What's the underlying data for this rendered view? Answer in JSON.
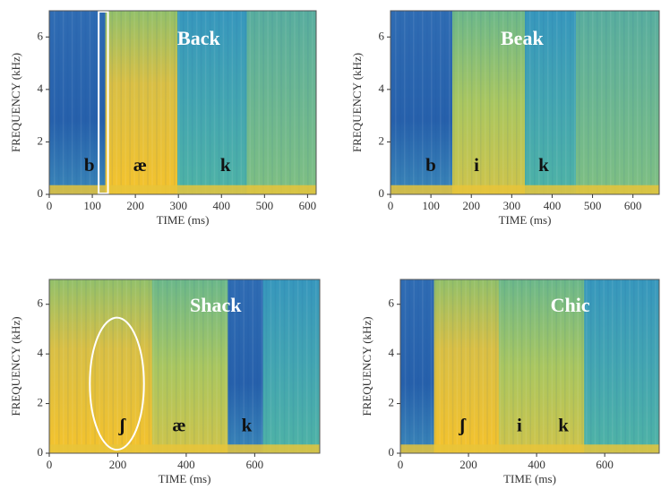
{
  "chart_data": [
    {
      "type": "spectrogram",
      "title": "Back",
      "x_label": "TIME (ms)",
      "y_label": "FREQUENCY (kHz)",
      "xlim": [
        0,
        620
      ],
      "xticks": [
        0,
        100,
        200,
        300,
        400,
        500,
        600
      ],
      "ylim": [
        0,
        7
      ],
      "yticks": [
        0,
        2,
        4,
        6
      ],
      "annotations": [
        "b",
        "æ",
        "k"
      ]
    },
    {
      "type": "spectrogram",
      "title": "Beak",
      "x_label": "TIME (ms)",
      "y_label": "FREQUENCY (kHz)",
      "xlim": [
        0,
        665
      ],
      "xticks": [
        0,
        100,
        200,
        300,
        400,
        500,
        600
      ],
      "ylim": [
        0,
        7
      ],
      "yticks": [
        0,
        2,
        4,
        6
      ],
      "annotations": [
        "b",
        "i",
        "k"
      ]
    },
    {
      "type": "spectrogram",
      "title": "Shack",
      "x_label": "TIME (ms)",
      "y_label": "FREQUENCY (kHz)",
      "xlim": [
        0,
        790
      ],
      "xticks": [
        0,
        200,
        400,
        600
      ],
      "ylim": [
        0,
        7
      ],
      "yticks": [
        0,
        2,
        4,
        6
      ],
      "annotations": [
        "ʃ",
        "æ",
        "k"
      ]
    },
    {
      "type": "spectrogram",
      "title": "Chic",
      "x_label": "TIME (ms)",
      "y_label": "FREQUENCY (kHz)",
      "xlim": [
        0,
        760
      ],
      "xticks": [
        0,
        200,
        400,
        600
      ],
      "ylim": [
        0,
        7
      ],
      "yticks": [
        0,
        2,
        4,
        6
      ],
      "annotations": [
        "ʃ",
        "i",
        "k"
      ]
    }
  ]
}
